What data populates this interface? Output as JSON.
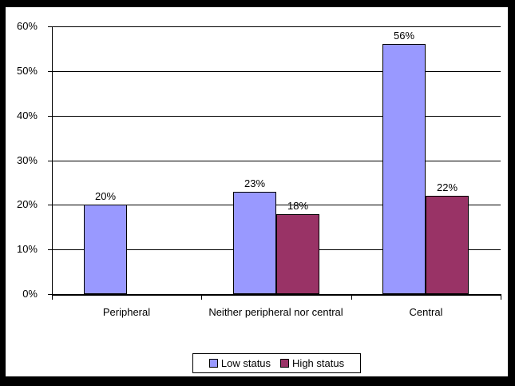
{
  "chart_data": {
    "type": "bar",
    "title": "",
    "xlabel": "",
    "ylabel": "",
    "categories": [
      "Peripheral",
      "Neither peripheral nor central",
      "Central"
    ],
    "series": [
      {
        "name": "Low status",
        "color": "#9999FF",
        "values": [
          20,
          23,
          56
        ]
      },
      {
        "name": "High status",
        "color": "#993366",
        "values": [
          0,
          18,
          22
        ]
      }
    ],
    "data_labels": [
      [
        "20%",
        "23%",
        "56%"
      ],
      [
        "",
        "18%",
        "22%"
      ]
    ],
    "ylim": [
      0,
      60
    ],
    "ytick_step": 10,
    "ytick_labels": [
      "0%",
      "10%",
      "20%",
      "30%",
      "40%",
      "50%",
      "60%"
    ],
    "grid": true,
    "gridline_color": "#000000",
    "bar_border_color": "#000000",
    "plot_background": "#FFFFFF",
    "frame_color": "#000000",
    "legend_position": "bottom"
  }
}
